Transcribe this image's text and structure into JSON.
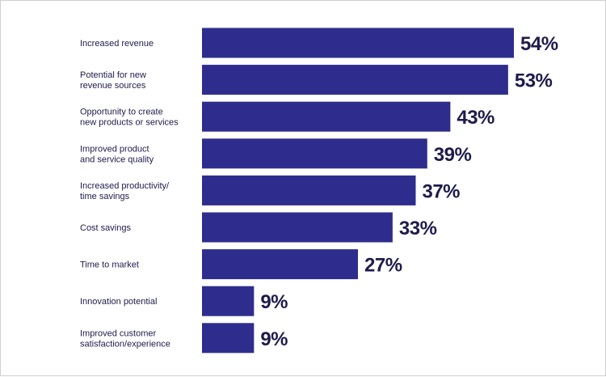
{
  "chart_data": {
    "type": "bar",
    "orientation": "horizontal",
    "categories": [
      [
        "Increased revenue"
      ],
      [
        "Potential for new",
        "revenue sources"
      ],
      [
        "Opportunity to create",
        "new products or services"
      ],
      [
        "Improved product",
        "and service quality"
      ],
      [
        "Increased productivity/",
        "time savings"
      ],
      [
        "Cost savings"
      ],
      [
        "Time to market"
      ],
      [
        "Innovation potential"
      ],
      [
        "Improved customer",
        "satisfaction/experience"
      ]
    ],
    "values": [
      54,
      53,
      43,
      39,
      37,
      33,
      27,
      9,
      9
    ],
    "value_labels": [
      "54%",
      "53%",
      "43%",
      "39%",
      "37%",
      "33%",
      "27%",
      "9%",
      "9%"
    ],
    "xlim": [
      0,
      54
    ],
    "bar_color": "#2e2d8e",
    "text_color": "#1e1b4b",
    "grid": false,
    "legend": "none"
  }
}
